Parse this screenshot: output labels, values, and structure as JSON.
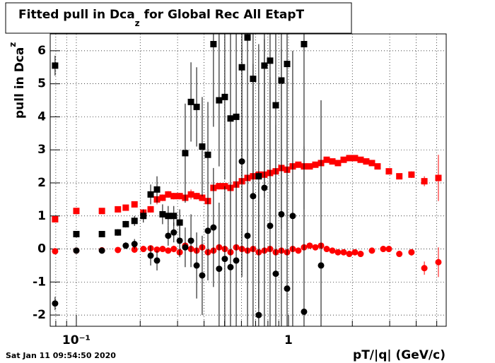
{
  "chart_data": {
    "type": "scatter",
    "title": [
      "Fitted pull in Dca",
      "z",
      " for Global Rec All EtapT"
    ],
    "y_label": [
      "pull in Dca",
      "z"
    ],
    "x_label": "pT/|q| (GeV/c)",
    "timestamp": "Sat Jan 11 09:54:50 2020",
    "log_x": true,
    "grid": true,
    "xlim": [
      0.0753,
      5.54
    ],
    "ylim": [
      -2.34,
      6.51
    ],
    "xticks": [
      {
        "value": 0.1,
        "label": "10⁻¹"
      },
      1
    ],
    "xgrid_minor": [
      0.08,
      0.09,
      0.2,
      0.3,
      0.4,
      0.5,
      0.6,
      0.7,
      0.8,
      0.9,
      2,
      3,
      4,
      5
    ],
    "yticks": [
      -2,
      -1,
      0,
      1,
      2,
      3,
      4,
      5,
      6
    ],
    "series": [
      {
        "name": "red squares",
        "color": "#ff0000",
        "marker": "square",
        "x": [
          0.0794,
          0.1,
          0.132,
          0.157,
          0.171,
          0.188,
          0.207,
          0.224,
          0.24,
          0.255,
          0.271,
          0.288,
          0.307,
          0.326,
          0.347,
          0.369,
          0.392,
          0.417,
          0.443,
          0.471,
          0.501,
          0.533,
          0.567,
          0.603,
          0.641,
          0.681,
          0.724,
          0.77,
          0.819,
          0.871,
          0.926,
          0.985,
          1.047,
          1.113,
          1.184,
          1.259,
          1.339,
          1.424,
          1.514,
          1.61,
          1.711,
          1.82,
          1.935,
          2.057,
          2.188,
          2.326,
          2.474,
          2.63,
          2.974,
          3.33,
          3.8,
          4.37,
          5.09
        ],
        "values": [
          0.9,
          1.15,
          1.15,
          1.2,
          1.25,
          1.35,
          1.1,
          1.2,
          1.5,
          1.55,
          1.65,
          1.6,
          1.6,
          1.55,
          1.65,
          1.6,
          1.55,
          1.45,
          1.85,
          1.9,
          1.9,
          1.85,
          1.95,
          2.05,
          2.15,
          2.2,
          2.25,
          2.25,
          2.3,
          2.35,
          2.45,
          2.4,
          2.5,
          2.55,
          2.5,
          2.5,
          2.55,
          2.6,
          2.7,
          2.65,
          2.6,
          2.7,
          2.75,
          2.75,
          2.7,
          2.65,
          2.6,
          2.5,
          2.35,
          2.2,
          2.25,
          2.05,
          2.15
        ],
        "errors": [
          0.08,
          0.05,
          0.05,
          0.05,
          0.05,
          0.05,
          0.08,
          0.1,
          0.15,
          0.1,
          0.1,
          0.1,
          0.1,
          0.1,
          0.15,
          0.1,
          0.1,
          0.1,
          0.1,
          0.1,
          0.1,
          0.1,
          0.1,
          0.1,
          0.1,
          0.1,
          0.1,
          0.1,
          0.1,
          0.1,
          0.08,
          0.08,
          0.08,
          0.08,
          0.06,
          0.06,
          0.06,
          0.06,
          0.06,
          0.06,
          0.05,
          0.05,
          0.05,
          0.05,
          0.05,
          0.05,
          0.05,
          0.05,
          0.06,
          0.08,
          0.1,
          0.15,
          0.7
        ]
      },
      {
        "name": "red circles",
        "color": "#ff0000",
        "marker": "circle",
        "x": [
          0.0794,
          0.1,
          0.132,
          0.157,
          0.188,
          0.207,
          0.224,
          0.24,
          0.255,
          0.271,
          0.288,
          0.307,
          0.326,
          0.347,
          0.369,
          0.392,
          0.417,
          0.443,
          0.471,
          0.501,
          0.533,
          0.567,
          0.603,
          0.641,
          0.681,
          0.724,
          0.77,
          0.819,
          0.871,
          0.926,
          0.985,
          1.047,
          1.113,
          1.184,
          1.259,
          1.339,
          1.424,
          1.514,
          1.61,
          1.711,
          1.82,
          1.935,
          2.057,
          2.188,
          2.474,
          2.797,
          2.974,
          3.33,
          3.8,
          4.37,
          5.09
        ],
        "values": [
          -0.07,
          -0.05,
          -0.04,
          -0.03,
          -0.02,
          0.0,
          0.02,
          -0.02,
          0.0,
          -0.05,
          0.0,
          -0.1,
          0.1,
          0.0,
          -0.05,
          0.05,
          -0.1,
          -0.05,
          0.05,
          0.0,
          -0.1,
          0.05,
          0.0,
          -0.05,
          0.0,
          -0.1,
          -0.05,
          0.0,
          -0.1,
          -0.05,
          -0.1,
          0.0,
          -0.05,
          0.05,
          0.1,
          0.05,
          0.1,
          0.0,
          -0.05,
          -0.1,
          -0.1,
          -0.15,
          -0.1,
          -0.15,
          -0.05,
          0.0,
          0.0,
          -0.15,
          -0.1,
          -0.58,
          -0.4
        ],
        "errors": [
          0.05,
          0.04,
          0.04,
          0.04,
          0.04,
          0.05,
          0.05,
          0.05,
          0.05,
          0.08,
          0.1,
          0.1,
          0.1,
          0.1,
          0.1,
          0.1,
          0.1,
          0.1,
          0.1,
          0.1,
          0.1,
          0.1,
          0.1,
          0.1,
          0.1,
          0.1,
          0.1,
          0.1,
          0.1,
          0.08,
          0.08,
          0.08,
          0.06,
          0.06,
          0.06,
          0.06,
          0.06,
          0.06,
          0.05,
          0.05,
          0.05,
          0.05,
          0.05,
          0.05,
          0.05,
          0.06,
          0.06,
          0.08,
          0.1,
          0.2,
          0.45
        ]
      },
      {
        "name": "black squares",
        "color": "#000000",
        "marker": "square",
        "x": [
          0.0794,
          0.1,
          0.132,
          0.157,
          0.171,
          0.188,
          0.207,
          0.224,
          0.24,
          0.255,
          0.271,
          0.288,
          0.307,
          0.326,
          0.347,
          0.369,
          0.392,
          0.417,
          0.443,
          0.471,
          0.501,
          0.533,
          0.567,
          0.603,
          0.641,
          0.681,
          0.724,
          0.77,
          0.819,
          0.871,
          0.926,
          0.985,
          1.184
        ],
        "values": [
          5.55,
          0.45,
          0.45,
          0.5,
          0.75,
          0.85,
          1.0,
          1.65,
          1.8,
          1.05,
          1.0,
          1.0,
          0.8,
          2.9,
          4.45,
          4.3,
          3.1,
          2.85,
          6.2,
          4.5,
          4.6,
          3.95,
          4.0,
          5.5,
          6.4,
          5.15,
          2.2,
          5.55,
          5.7,
          4.35,
          5.1,
          5.6,
          6.2
        ],
        "errors": [
          0.3,
          0.05,
          0.05,
          0.1,
          0.1,
          0.15,
          0.2,
          0.3,
          0.4,
          0.3,
          0.3,
          0.3,
          0.4,
          1.5,
          1.2,
          1.2,
          1.5,
          1.6,
          2.5,
          2.0,
          2.5,
          3.0,
          3.0,
          3.5,
          4.0,
          3.5,
          4.0,
          4.0,
          4.5,
          4.5,
          4.5,
          5.0,
          5.0
        ]
      },
      {
        "name": "black circles",
        "color": "#000000",
        "marker": "circle",
        "x": [
          0.0794,
          0.1,
          0.132,
          0.171,
          0.188,
          0.224,
          0.24,
          0.271,
          0.288,
          0.307,
          0.326,
          0.347,
          0.369,
          0.392,
          0.417,
          0.443,
          0.471,
          0.501,
          0.533,
          0.567,
          0.603,
          0.641,
          0.681,
          0.724,
          0.77,
          0.819,
          0.871,
          0.926,
          0.985,
          1.047,
          1.184,
          1.424
        ],
        "values": [
          -1.65,
          -0.05,
          -0.05,
          0.1,
          0.15,
          -0.2,
          -0.35,
          0.4,
          0.5,
          0.25,
          0.05,
          0.25,
          -0.5,
          -0.8,
          0.55,
          0.65,
          -0.6,
          -0.3,
          -0.55,
          -0.35,
          2.65,
          0.4,
          1.6,
          -2.0,
          1.85,
          0.7,
          -0.75,
          1.05,
          -1.2,
          1.0,
          -1.9,
          -0.5
        ],
        "errors": [
          0.2,
          0.05,
          0.05,
          0.1,
          0.15,
          0.3,
          0.3,
          0.3,
          0.3,
          0.5,
          0.6,
          0.8,
          1.0,
          1.2,
          1.5,
          1.8,
          2.0,
          2.2,
          2.5,
          3.0,
          3.5,
          3.5,
          4.0,
          4.0,
          4.5,
          4.5,
          4.5,
          5.0,
          5.0,
          5.0,
          5.0,
          5.0
        ]
      }
    ]
  }
}
